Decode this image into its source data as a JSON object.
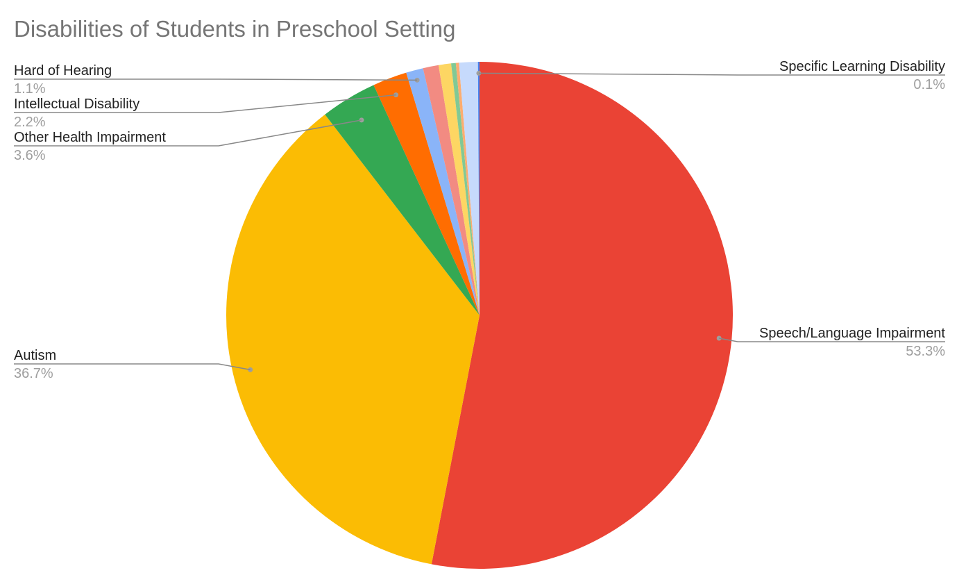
{
  "chart_data": {
    "type": "pie",
    "title": "Disabilities of Students in Preschool Setting",
    "start_angle_deg": 0,
    "direction": "clockwise",
    "slices": [
      {
        "name": "Speech/Language Impairment",
        "value": 53.3,
        "pct_label": "53.3%",
        "color": "#ea4335",
        "show_label": true,
        "label_side": "right"
      },
      {
        "name": "Autism",
        "value": 36.7,
        "pct_label": "36.7%",
        "color": "#fbbc04",
        "show_label": true,
        "label_side": "left"
      },
      {
        "name": "Other Health Impairment",
        "value": 3.6,
        "pct_label": "3.6%",
        "color": "#34a853",
        "show_label": true,
        "label_side": "left"
      },
      {
        "name": "Intellectual Disability",
        "value": 2.2,
        "pct_label": "2.2%",
        "color": "#ff6d01",
        "show_label": true,
        "label_side": "left"
      },
      {
        "name": "Hard of Hearing",
        "value": 1.1,
        "pct_label": "1.1%",
        "color": "#8ab4f8",
        "show_label": true,
        "label_side": "left"
      },
      {
        "name": "",
        "value": 1.0,
        "pct_label": "",
        "color": "#f28b82",
        "show_label": false
      },
      {
        "name": "",
        "value": 0.8,
        "pct_label": "",
        "color": "#fdd663",
        "show_label": false
      },
      {
        "name": "",
        "value": 0.3,
        "pct_label": "",
        "color": "#81c995",
        "show_label": false
      },
      {
        "name": "",
        "value": 0.2,
        "pct_label": "",
        "color": "#fcad70",
        "show_label": false
      },
      {
        "name": "",
        "value": 1.2,
        "pct_label": "",
        "color": "#c6dafc",
        "show_label": false
      },
      {
        "name": "Specific Learning Disability",
        "value": 0.1,
        "pct_label": "0.1%",
        "color": "#4285f4",
        "show_label": true,
        "label_side": "right"
      }
    ]
  }
}
